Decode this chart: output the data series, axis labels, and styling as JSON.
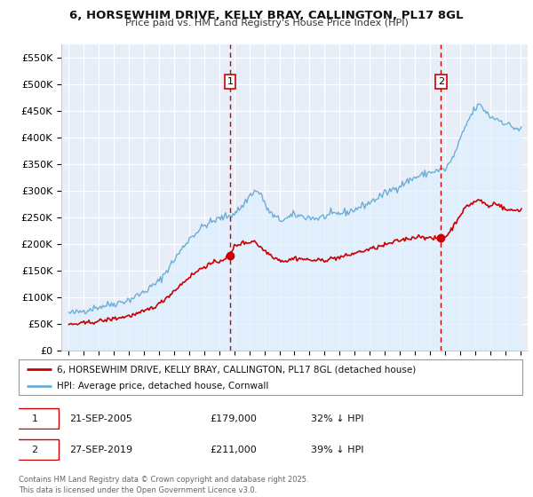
{
  "title": "6, HORSEWHIM DRIVE, KELLY BRAY, CALLINGTON, PL17 8GL",
  "subtitle": "Price paid vs. HM Land Registry's House Price Index (HPI)",
  "hpi_color": "#6baed6",
  "hpi_fill_color": "#ddeeff",
  "price_color": "#cc0000",
  "dashed_line_color": "#cc0000",
  "bg_color": "#e8eef8",
  "grid_color": "#ffffff",
  "ylim": [
    0,
    575000
  ],
  "yticks": [
    0,
    50000,
    100000,
    150000,
    200000,
    250000,
    300000,
    350000,
    400000,
    450000,
    500000,
    550000
  ],
  "ytick_labels": [
    "£0",
    "£50K",
    "£100K",
    "£150K",
    "£200K",
    "£250K",
    "£300K",
    "£350K",
    "£400K",
    "£450K",
    "£500K",
    "£550K"
  ],
  "xlim_start": 1994.5,
  "xlim_end": 2025.5,
  "xticks": [
    1995,
    1996,
    1997,
    1998,
    1999,
    2000,
    2001,
    2002,
    2003,
    2004,
    2005,
    2006,
    2007,
    2008,
    2009,
    2010,
    2011,
    2012,
    2013,
    2014,
    2015,
    2016,
    2017,
    2018,
    2019,
    2020,
    2021,
    2022,
    2023,
    2024,
    2025
  ],
  "marker1_x": 2005.72,
  "marker1_label": "1",
  "marker1_price": 179000,
  "marker2_x": 2019.74,
  "marker2_label": "2",
  "marker2_price": 211000,
  "legend_line1": "6, HORSEWHIM DRIVE, KELLY BRAY, CALLINGTON, PL17 8GL (detached house)",
  "legend_line2": "HPI: Average price, detached house, Cornwall",
  "table_row1": [
    "1",
    "21-SEP-2005",
    "£179,000",
    "32% ↓ HPI"
  ],
  "table_row2": [
    "2",
    "27-SEP-2019",
    "£211,000",
    "39% ↓ HPI"
  ],
  "footer": "Contains HM Land Registry data © Crown copyright and database right 2025.\nThis data is licensed under the Open Government Licence v3.0."
}
